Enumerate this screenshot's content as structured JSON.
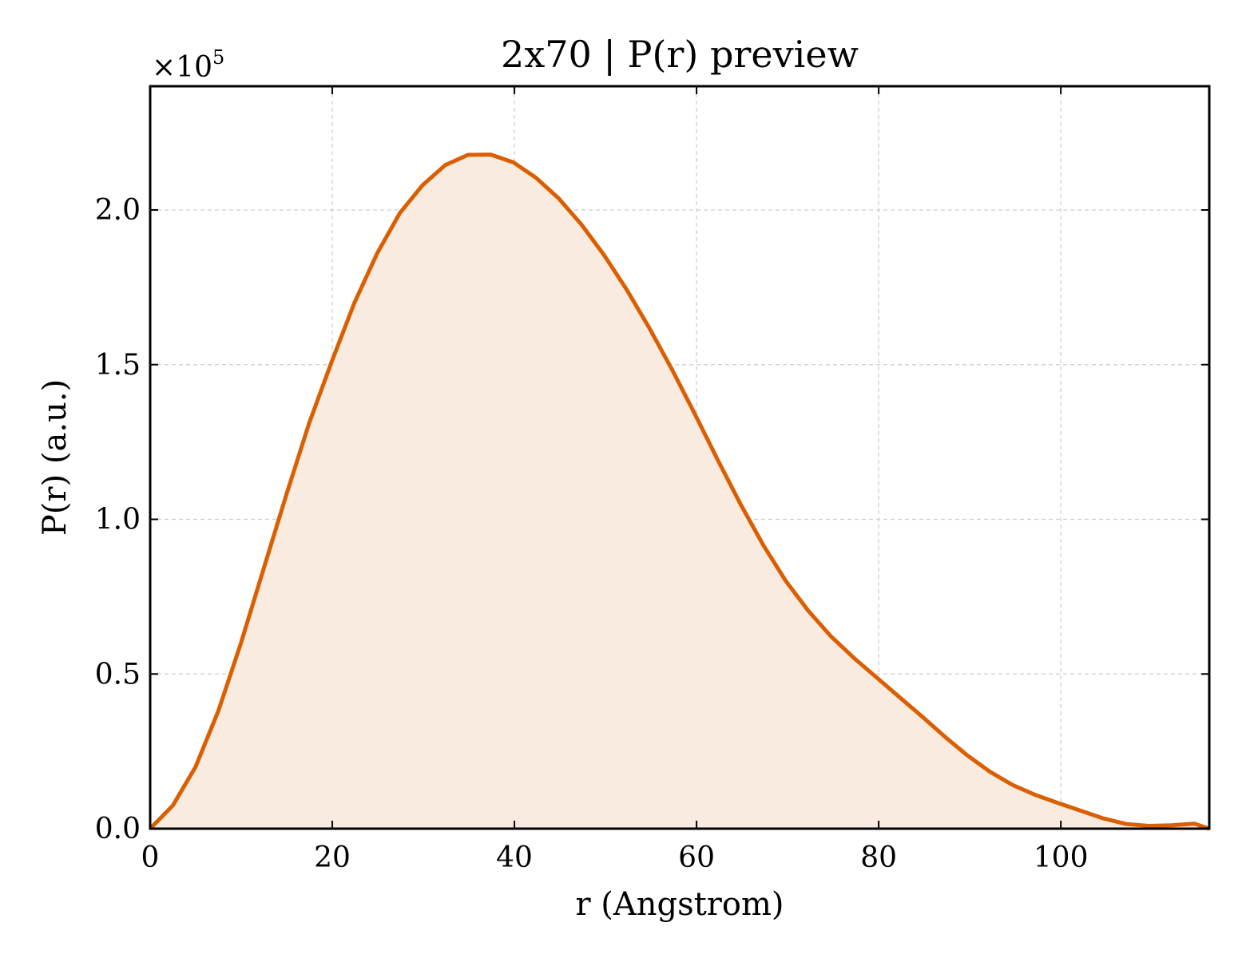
{
  "chart_data": {
    "type": "area",
    "title": "2x70 | P(r) preview",
    "xlabel": "r (Angstrom)",
    "ylabel": "P(r) (a.u.)",
    "y_multiplier_label": "×10",
    "y_multiplier_exponent": "5",
    "y_scale": 100000,
    "xlim": [
      0,
      116.3
    ],
    "ylim": [
      0,
      240000
    ],
    "x_ticks": [
      0,
      20,
      40,
      60,
      80,
      100
    ],
    "x_tick_labels": [
      "0",
      "20",
      "40",
      "60",
      "80",
      "100"
    ],
    "y_ticks": [
      0,
      50000,
      100000,
      150000,
      200000
    ],
    "y_tick_labels": [
      "0.0",
      "0.5",
      "1.0",
      "1.5",
      "2.0"
    ],
    "grid": true,
    "line_color": "#d95f02",
    "fill_color": "#f9ebe0",
    "series": [
      {
        "x": [
          0,
          2.49,
          4.99,
          7.48,
          9.97,
          12.46,
          14.96,
          17.45,
          19.94,
          22.43,
          24.93,
          27.42,
          29.91,
          32.4,
          34.9,
          37.39,
          39.88,
          42.37,
          44.87,
          47.36,
          49.85,
          52.34,
          54.84,
          57.33,
          59.82,
          62.31,
          64.81,
          67.3,
          69.79,
          72.28,
          74.78,
          77.27,
          79.76,
          82.25,
          84.75,
          87.24,
          89.73,
          92.22,
          94.72,
          97.21,
          99.7,
          102.19,
          104.69,
          107.18,
          109.67,
          112.16,
          114.66,
          116.3
        ],
        "y": [
          0,
          7500,
          20000,
          38000,
          60000,
          84000,
          108000,
          131000,
          151000,
          170000,
          186000,
          199000,
          208000,
          214500,
          217800,
          217900,
          215400,
          210400,
          203700,
          195300,
          185400,
          174200,
          161700,
          148300,
          134000,
          119300,
          105000,
          91800,
          80100,
          70400,
          62100,
          55200,
          48900,
          42600,
          36300,
          29800,
          23700,
          18400,
          14100,
          10900,
          8300,
          5800,
          3300,
          1500,
          900,
          1100,
          1600,
          0
        ]
      }
    ]
  }
}
